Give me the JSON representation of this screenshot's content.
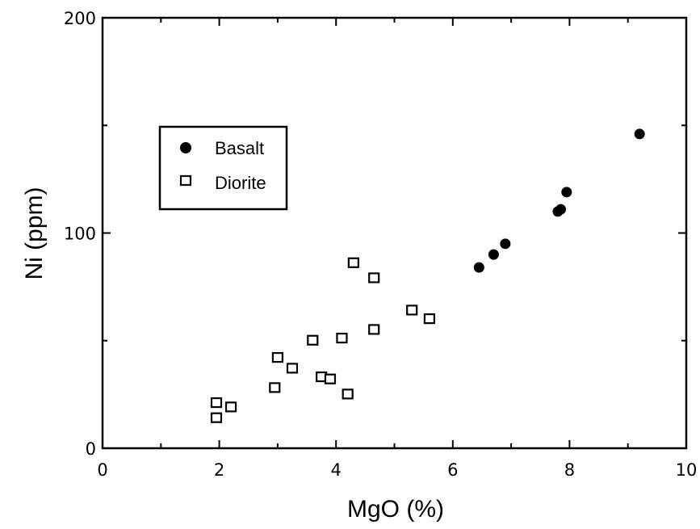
{
  "chart_data": {
    "type": "scatter",
    "xlabel": "MgO (%)",
    "ylabel": "Ni (ppm)",
    "xlim": [
      0,
      10
    ],
    "ylim": [
      0,
      200
    ],
    "x_ticks": [
      "0",
      "2",
      "4",
      "6",
      "8",
      "10"
    ],
    "y_ticks": [
      "0",
      "100",
      "200"
    ],
    "legend_position": "upper-left",
    "grid": false,
    "series": [
      {
        "name": "Basalt",
        "marker": "filled-circle",
        "color": "#000000",
        "points": [
          {
            "x": 6.45,
            "y": 84
          },
          {
            "x": 6.7,
            "y": 90
          },
          {
            "x": 6.9,
            "y": 95
          },
          {
            "x": 7.8,
            "y": 110
          },
          {
            "x": 7.85,
            "y": 111
          },
          {
            "x": 7.95,
            "y": 119
          },
          {
            "x": 9.2,
            "y": 146
          }
        ]
      },
      {
        "name": "Diorite",
        "marker": "open-square",
        "color": "#000000",
        "points": [
          {
            "x": 1.95,
            "y": 14
          },
          {
            "x": 1.95,
            "y": 21
          },
          {
            "x": 2.2,
            "y": 19
          },
          {
            "x": 2.95,
            "y": 28
          },
          {
            "x": 3.0,
            "y": 42
          },
          {
            "x": 3.25,
            "y": 37
          },
          {
            "x": 3.6,
            "y": 50
          },
          {
            "x": 3.75,
            "y": 33
          },
          {
            "x": 3.9,
            "y": 32
          },
          {
            "x": 4.1,
            "y": 51
          },
          {
            "x": 4.2,
            "y": 25
          },
          {
            "x": 4.3,
            "y": 86
          },
          {
            "x": 4.65,
            "y": 55
          },
          {
            "x": 4.65,
            "y": 79
          },
          {
            "x": 5.3,
            "y": 64
          },
          {
            "x": 5.6,
            "y": 60
          }
        ]
      }
    ]
  }
}
